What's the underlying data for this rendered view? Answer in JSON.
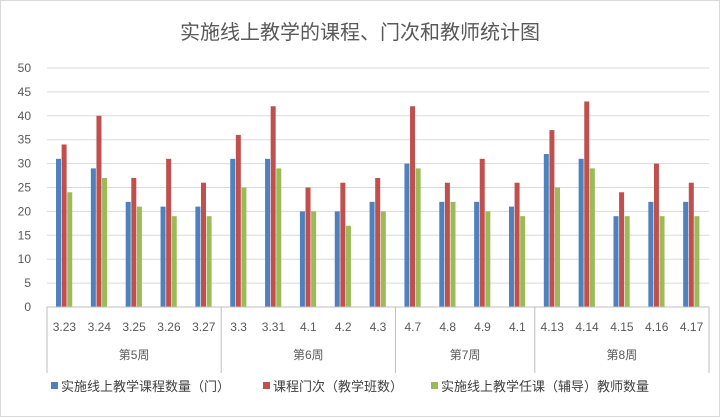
{
  "chart_data": {
    "type": "bar",
    "title": "实施线上教学的课程、门次和教师统计图",
    "xlabel": "",
    "ylabel": "",
    "ylim": [
      0,
      50
    ],
    "yticks": [
      0,
      5,
      10,
      15,
      20,
      25,
      30,
      35,
      40,
      45,
      50
    ],
    "grid": true,
    "legend_position": "bottom",
    "categories": [
      "3.23",
      "3.24",
      "3.25",
      "3.26",
      "3.27",
      "3.3",
      "3.31",
      "4.1",
      "4.2",
      "4.3",
      "4.7",
      "4.8",
      "4.9",
      "4.1",
      "4.13",
      "4.14",
      "4.15",
      "4.16",
      "4.17"
    ],
    "groups": [
      {
        "label": "第5周",
        "count": 5
      },
      {
        "label": "第6周",
        "count": 5
      },
      {
        "label": "第7周",
        "count": 4
      },
      {
        "label": "第8周",
        "count": 5
      }
    ],
    "series": [
      {
        "name": "实施线上教学课程数量（门）",
        "color": "#4f81bd",
        "values": [
          31,
          29,
          22,
          21,
          21,
          31,
          31,
          20,
          20,
          22,
          30,
          22,
          22,
          21,
          32,
          31,
          19,
          22,
          22
        ]
      },
      {
        "name": "课程门次（教学班数）",
        "color": "#c0504d",
        "values": [
          34,
          40,
          27,
          31,
          26,
          36,
          42,
          25,
          26,
          27,
          42,
          26,
          31,
          26,
          37,
          43,
          24,
          30,
          26
        ]
      },
      {
        "name": "实施线上教学任课（辅导）教师数量",
        "color": "#9bbb59",
        "values": [
          24,
          27,
          21,
          19,
          19,
          25,
          29,
          20,
          17,
          20,
          29,
          22,
          20,
          19,
          25,
          29,
          19,
          19,
          19
        ]
      }
    ]
  }
}
